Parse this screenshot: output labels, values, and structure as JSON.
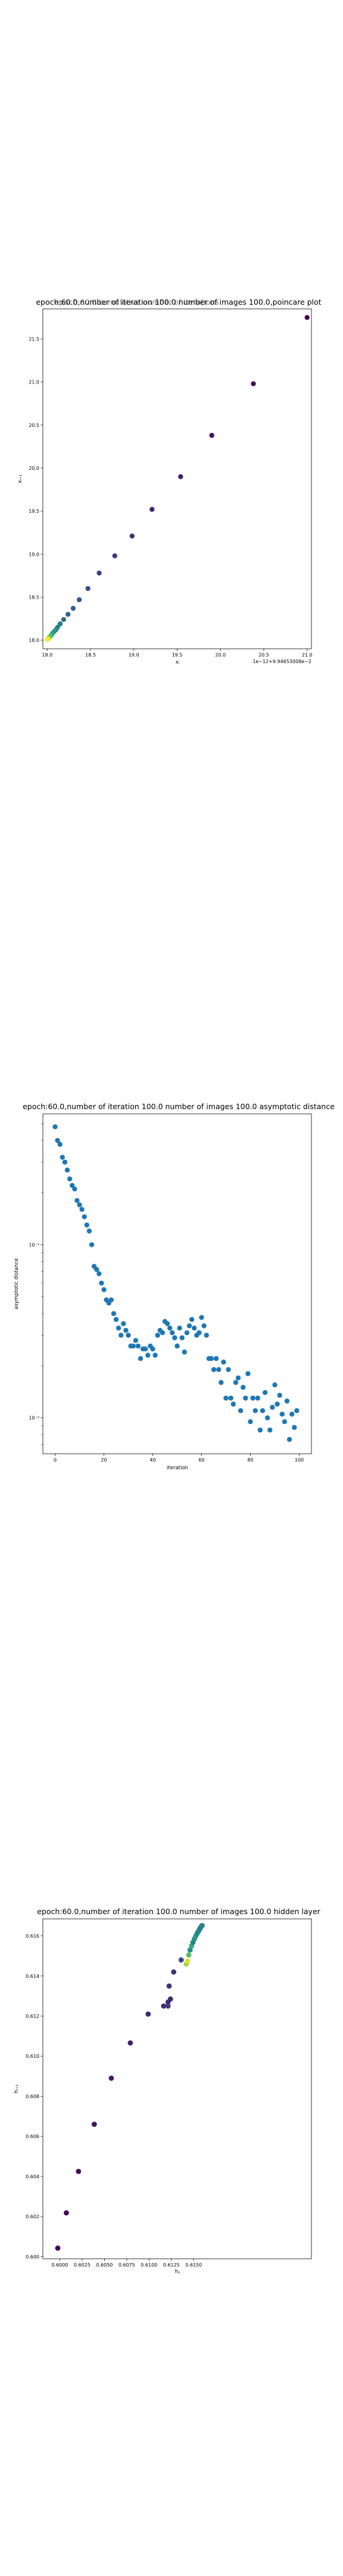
{
  "chart_data": [
    {
      "type": "scatter",
      "title": "epoch:60.0,number of iteration 100.0 number of images 100.0,poincare plot",
      "overlay_title": "epoch:60.0 cumulative number of iterations",
      "xlabel": "xᵢ",
      "ylabel": "xᵢ₊₁",
      "x_offset_label": "1e−12+9.94653008e−2",
      "xlim": [
        17.95,
        21.05
      ],
      "ylim": [
        17.9,
        21.85
      ],
      "xticks": [
        "18.0",
        "18.5",
        "19.0",
        "19.5",
        "20.0",
        "20.5",
        "21.0"
      ],
      "yticks": [
        "18.0",
        "18.5",
        "19.0",
        "19.5",
        "20.0",
        "20.5",
        "21.0",
        "21.5"
      ],
      "colormap": "viridis",
      "points": [
        {
          "x": 21.0,
          "y": 21.75,
          "c": 0.0
        },
        {
          "x": 20.38,
          "y": 20.98,
          "c": 0.03
        },
        {
          "x": 19.9,
          "y": 20.38,
          "c": 0.06
        },
        {
          "x": 19.54,
          "y": 19.9,
          "c": 0.09
        },
        {
          "x": 19.21,
          "y": 19.52,
          "c": 0.12
        },
        {
          "x": 18.98,
          "y": 19.21,
          "c": 0.15
        },
        {
          "x": 18.78,
          "y": 18.98,
          "c": 0.18
        },
        {
          "x": 18.6,
          "y": 18.78,
          "c": 0.21
        },
        {
          "x": 18.47,
          "y": 18.6,
          "c": 0.24
        },
        {
          "x": 18.37,
          "y": 18.47,
          "c": 0.27
        },
        {
          "x": 18.3,
          "y": 18.37,
          "c": 0.3
        },
        {
          "x": 18.24,
          "y": 18.3,
          "c": 0.33
        },
        {
          "x": 18.19,
          "y": 18.24,
          "c": 0.36
        },
        {
          "x": 18.15,
          "y": 18.19,
          "c": 0.4
        },
        {
          "x": 18.12,
          "y": 18.15,
          "c": 0.44
        },
        {
          "x": 18.1,
          "y": 18.12,
          "c": 0.48
        },
        {
          "x": 18.08,
          "y": 18.1,
          "c": 0.52
        },
        {
          "x": 18.06,
          "y": 18.08,
          "c": 0.56
        },
        {
          "x": 18.05,
          "y": 18.06,
          "c": 0.6
        },
        {
          "x": 18.04,
          "y": 18.05,
          "c": 0.65
        },
        {
          "x": 18.03,
          "y": 18.04,
          "c": 0.7
        },
        {
          "x": 18.02,
          "y": 18.03,
          "c": 0.76
        },
        {
          "x": 18.015,
          "y": 18.02,
          "c": 0.82
        },
        {
          "x": 18.01,
          "y": 18.015,
          "c": 0.9
        },
        {
          "x": 18.005,
          "y": 18.01,
          "c": 1.0
        }
      ]
    },
    {
      "type": "scatter",
      "title": "epoch:60.0,number of iteration 100.0  number of images 100.0 asymptotic distance",
      "xlabel": "iteration",
      "ylabel": "asymptotic distance",
      "yscale": "log",
      "xlim": [
        -5,
        105
      ],
      "ylim": [
        0.0062,
        0.57
      ],
      "xticks": [
        0,
        20,
        40,
        60,
        80,
        100
      ],
      "yticks": [
        {
          "value": 0.01,
          "label": "10⁻²"
        },
        {
          "value": 0.1,
          "label": "10⁻¹"
        }
      ],
      "color": "#1f77b4",
      "x": [
        0,
        1,
        2,
        3,
        4,
        5,
        6,
        7,
        8,
        9,
        10,
        11,
        12,
        13,
        14,
        15,
        16,
        17,
        18,
        19,
        20,
        21,
        22,
        23,
        24,
        25,
        26,
        27,
        28,
        29,
        30,
        31,
        32,
        33,
        34,
        35,
        36,
        37,
        38,
        39,
        40,
        41,
        42,
        43,
        44,
        45,
        46,
        47,
        48,
        49,
        50,
        51,
        52,
        53,
        54,
        55,
        56,
        57,
        58,
        59,
        60,
        61,
        62,
        63,
        64,
        65,
        66,
        67,
        68,
        69,
        70,
        71,
        72,
        73,
        74,
        75,
        76,
        77,
        78,
        79,
        80,
        81,
        82,
        83,
        84,
        85,
        86,
        87,
        88,
        89,
        90,
        91,
        92,
        93,
        94,
        95,
        96,
        97,
        98,
        99
      ],
      "y": [
        0.48,
        0.4,
        0.38,
        0.32,
        0.3,
        0.27,
        0.24,
        0.22,
        0.21,
        0.18,
        0.17,
        0.16,
        0.145,
        0.13,
        0.12,
        0.1,
        0.075,
        0.072,
        0.068,
        0.06,
        0.055,
        0.048,
        0.046,
        0.048,
        0.04,
        0.037,
        0.033,
        0.03,
        0.035,
        0.032,
        0.03,
        0.026,
        0.026,
        0.028,
        0.026,
        0.022,
        0.025,
        0.025,
        0.023,
        0.026,
        0.025,
        0.023,
        0.03,
        0.032,
        0.031,
        0.036,
        0.035,
        0.033,
        0.031,
        0.029,
        0.026,
        0.033,
        0.029,
        0.024,
        0.031,
        0.034,
        0.037,
        0.033,
        0.03,
        0.031,
        0.038,
        0.034,
        0.03,
        0.022,
        0.022,
        0.019,
        0.022,
        0.019,
        0.016,
        0.021,
        0.013,
        0.019,
        0.013,
        0.012,
        0.016,
        0.017,
        0.011,
        0.015,
        0.013,
        0.018,
        0.0095,
        0.013,
        0.011,
        0.013,
        0.0085,
        0.011,
        0.014,
        0.01,
        0.0085,
        0.0115,
        0.0155,
        0.012,
        0.0135,
        0.0105,
        0.0095,
        0.0125,
        0.0075,
        0.0105,
        0.0088,
        0.011
      ]
    },
    {
      "type": "scatter",
      "title": "epoch:60.0,number of iteration 100.0  number of images 100.0 hidden layer",
      "xlabel": "hᵢⱼ",
      "ylabel": "hᵢ₊₁",
      "xlim": [
        0.5981,
        0.6282
      ],
      "ylim": [
        0.59989,
        0.61685
      ],
      "xticks": [
        "0.6000",
        "0.6025",
        "0.6050",
        "0.6075",
        "0.6100",
        "0.6125",
        "0.6150"
      ],
      "yticks": [
        "0.600",
        "0.602",
        "0.604",
        "0.606",
        "0.608",
        "0.610",
        "0.612",
        "0.614",
        "0.616"
      ],
      "colormap": "viridis",
      "points": [
        {
          "x": 0.59977,
          "y": 0.60042,
          "c": 0.0
        },
        {
          "x": 0.60073,
          "y": 0.60218,
          "c": 0.02
        },
        {
          "x": 0.60209,
          "y": 0.60425,
          "c": 0.04
        },
        {
          "x": 0.60386,
          "y": 0.6066,
          "c": 0.06
        },
        {
          "x": 0.60577,
          "y": 0.6089,
          "c": 0.08
        },
        {
          "x": 0.6079,
          "y": 0.61066,
          "c": 0.1
        },
        {
          "x": 0.6099,
          "y": 0.6121,
          "c": 0.12
        },
        {
          "x": 0.61164,
          "y": 0.6125,
          "c": 0.14
        },
        {
          "x": 0.61213,
          "y": 0.6127,
          "c": 0.13
        },
        {
          "x": 0.6124,
          "y": 0.61285,
          "c": 0.12
        },
        {
          "x": 0.61213,
          "y": 0.6125,
          "c": 0.18
        },
        {
          "x": 0.61225,
          "y": 0.6135,
          "c": 0.16
        },
        {
          "x": 0.61276,
          "y": 0.6142,
          "c": 0.15
        },
        {
          "x": 0.6136,
          "y": 0.6148,
          "c": 0.2
        },
        {
          "x": 0.61418,
          "y": 0.6146,
          "c": 0.85
        },
        {
          "x": 0.61432,
          "y": 0.61475,
          "c": 0.95
        },
        {
          "x": 0.61445,
          "y": 0.61505,
          "c": 0.7
        },
        {
          "x": 0.6146,
          "y": 0.6153,
          "c": 0.5
        },
        {
          "x": 0.61476,
          "y": 0.6155,
          "c": 0.6
        },
        {
          "x": 0.61492,
          "y": 0.61568,
          "c": 0.45
        },
        {
          "x": 0.61508,
          "y": 0.61585,
          "c": 0.5
        },
        {
          "x": 0.61522,
          "y": 0.61598,
          "c": 0.55
        },
        {
          "x": 0.61536,
          "y": 0.6161,
          "c": 0.5
        },
        {
          "x": 0.61549,
          "y": 0.6162,
          "c": 0.45
        },
        {
          "x": 0.61561,
          "y": 0.61628,
          "c": 0.5
        },
        {
          "x": 0.6157,
          "y": 0.61636,
          "c": 0.45
        },
        {
          "x": 0.61578,
          "y": 0.61642,
          "c": 0.4
        },
        {
          "x": 0.61585,
          "y": 0.61647,
          "c": 0.45
        },
        {
          "x": 0.6159,
          "y": 0.6165,
          "c": 0.4
        },
        {
          "x": 0.61595,
          "y": 0.61652,
          "c": 0.45
        }
      ]
    }
  ]
}
